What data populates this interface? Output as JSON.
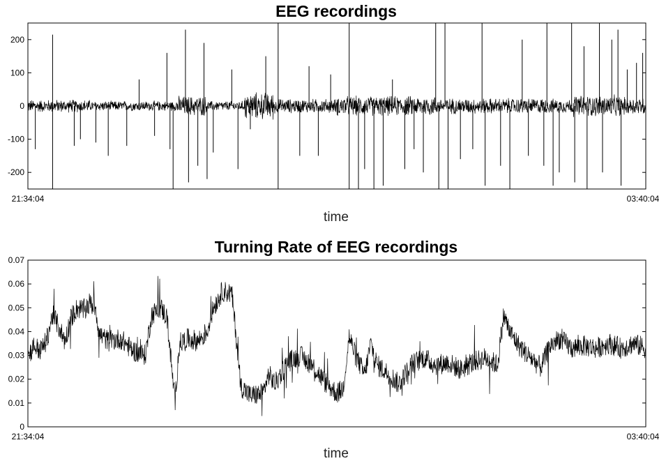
{
  "chart_data": [
    {
      "type": "line",
      "title": "EEG recordings",
      "xlabel": "time",
      "ylabel": "",
      "ylim": [
        -250,
        250
      ],
      "yticks": [
        200,
        100,
        0,
        -100,
        -200
      ],
      "yticklabels": [
        "200",
        "100",
        "0",
        "-100",
        "-200"
      ],
      "xticklabels": [
        "21:34:04",
        "03:40:04"
      ],
      "x_range": [
        "21:34:04",
        "03:40:04"
      ],
      "grid": false,
      "line_color": "#000000",
      "segments": [
        {
          "start": 0.0,
          "end": 0.1,
          "amplitude": 18
        },
        {
          "start": 0.1,
          "end": 0.24,
          "amplitude": 14
        },
        {
          "start": 0.24,
          "end": 0.29,
          "amplitude": 28
        },
        {
          "start": 0.29,
          "end": 0.35,
          "amplitude": 14
        },
        {
          "start": 0.35,
          "end": 0.4,
          "amplitude": 38
        },
        {
          "start": 0.4,
          "end": 0.5,
          "amplitude": 20
        },
        {
          "start": 0.5,
          "end": 0.66,
          "amplitude": 28
        },
        {
          "start": 0.66,
          "end": 0.84,
          "amplitude": 22
        },
        {
          "start": 0.84,
          "end": 0.88,
          "amplitude": 20
        },
        {
          "start": 0.88,
          "end": 0.96,
          "amplitude": 30
        },
        {
          "start": 0.96,
          "end": 1.0,
          "amplitude": 25
        }
      ],
      "spikes": [
        {
          "x": 0.012,
          "y": -130
        },
        {
          "x": 0.04,
          "y": 215
        },
        {
          "x": 0.04,
          "y": -250
        },
        {
          "x": 0.075,
          "y": -120
        },
        {
          "x": 0.085,
          "y": -100
        },
        {
          "x": 0.11,
          "y": -110
        },
        {
          "x": 0.13,
          "y": -150
        },
        {
          "x": 0.16,
          "y": -120
        },
        {
          "x": 0.18,
          "y": 80
        },
        {
          "x": 0.205,
          "y": -90
        },
        {
          "x": 0.225,
          "y": 160
        },
        {
          "x": 0.23,
          "y": -130
        },
        {
          "x": 0.235,
          "y": -250
        },
        {
          "x": 0.255,
          "y": 230
        },
        {
          "x": 0.26,
          "y": -230
        },
        {
          "x": 0.275,
          "y": -180
        },
        {
          "x": 0.285,
          "y": 190
        },
        {
          "x": 0.29,
          "y": -220
        },
        {
          "x": 0.3,
          "y": -140
        },
        {
          "x": 0.33,
          "y": 110
        },
        {
          "x": 0.34,
          "y": -190
        },
        {
          "x": 0.36,
          "y": -70
        },
        {
          "x": 0.385,
          "y": 150
        },
        {
          "x": 0.405,
          "y": 250
        },
        {
          "x": 0.405,
          "y": -250
        },
        {
          "x": 0.44,
          "y": -150
        },
        {
          "x": 0.455,
          "y": 120
        },
        {
          "x": 0.47,
          "y": -150
        },
        {
          "x": 0.49,
          "y": 95
        },
        {
          "x": 0.52,
          "y": 250
        },
        {
          "x": 0.52,
          "y": -250
        },
        {
          "x": 0.535,
          "y": -250
        },
        {
          "x": 0.545,
          "y": -190
        },
        {
          "x": 0.56,
          "y": -250
        },
        {
          "x": 0.575,
          "y": -240
        },
        {
          "x": 0.59,
          "y": 80
        },
        {
          "x": 0.61,
          "y": -190
        },
        {
          "x": 0.625,
          "y": -130
        },
        {
          "x": 0.64,
          "y": -200
        },
        {
          "x": 0.66,
          "y": 250
        },
        {
          "x": 0.665,
          "y": -250
        },
        {
          "x": 0.675,
          "y": 250
        },
        {
          "x": 0.68,
          "y": -250
        },
        {
          "x": 0.7,
          "y": -160
        },
        {
          "x": 0.72,
          "y": -130
        },
        {
          "x": 0.735,
          "y": 250
        },
        {
          "x": 0.74,
          "y": -240
        },
        {
          "x": 0.765,
          "y": -180
        },
        {
          "x": 0.78,
          "y": -250
        },
        {
          "x": 0.8,
          "y": 200
        },
        {
          "x": 0.81,
          "y": -150
        },
        {
          "x": 0.835,
          "y": -180
        },
        {
          "x": 0.84,
          "y": 250
        },
        {
          "x": 0.85,
          "y": -240
        },
        {
          "x": 0.86,
          "y": -200
        },
        {
          "x": 0.88,
          "y": 250
        },
        {
          "x": 0.885,
          "y": -230
        },
        {
          "x": 0.9,
          "y": 180
        },
        {
          "x": 0.905,
          "y": -250
        },
        {
          "x": 0.925,
          "y": 250
        },
        {
          "x": 0.93,
          "y": -200
        },
        {
          "x": 0.945,
          "y": 200
        },
        {
          "x": 0.955,
          "y": 230
        },
        {
          "x": 0.96,
          "y": -240
        },
        {
          "x": 0.97,
          "y": 110
        },
        {
          "x": 0.985,
          "y": 130
        },
        {
          "x": 0.995,
          "y": 160
        }
      ]
    },
    {
      "type": "line",
      "title": "Turning Rate of EEG recordings",
      "xlabel": "time",
      "ylabel": "",
      "ylim": [
        0,
        0.07
      ],
      "yticks": [
        0,
        0.01,
        0.02,
        0.03,
        0.04,
        0.05,
        0.06,
        0.07
      ],
      "yticklabels": [
        "0",
        "0.01",
        "0.02",
        "0.03",
        "0.04",
        "0.05",
        "0.06",
        "0.07"
      ],
      "xticklabels": [
        "21:34:04",
        "03:40:04"
      ],
      "x_range": [
        "21:34:04",
        "03:40:04"
      ],
      "grid": false,
      "line_color": "#000000",
      "trend": [
        {
          "x": 0.0,
          "y": 0.03
        },
        {
          "x": 0.01,
          "y": 0.034
        },
        {
          "x": 0.02,
          "y": 0.032
        },
        {
          "x": 0.03,
          "y": 0.036
        },
        {
          "x": 0.04,
          "y": 0.047
        },
        {
          "x": 0.05,
          "y": 0.042
        },
        {
          "x": 0.06,
          "y": 0.036
        },
        {
          "x": 0.07,
          "y": 0.046
        },
        {
          "x": 0.08,
          "y": 0.05
        },
        {
          "x": 0.09,
          "y": 0.049
        },
        {
          "x": 0.1,
          "y": 0.052
        },
        {
          "x": 0.11,
          "y": 0.05
        },
        {
          "x": 0.115,
          "y": 0.039
        },
        {
          "x": 0.13,
          "y": 0.036
        },
        {
          "x": 0.15,
          "y": 0.037
        },
        {
          "x": 0.17,
          "y": 0.032
        },
        {
          "x": 0.19,
          "y": 0.03
        },
        {
          "x": 0.2,
          "y": 0.047
        },
        {
          "x": 0.215,
          "y": 0.05
        },
        {
          "x": 0.225,
          "y": 0.046
        },
        {
          "x": 0.232,
          "y": 0.027
        },
        {
          "x": 0.238,
          "y": 0.01
        },
        {
          "x": 0.245,
          "y": 0.035
        },
        {
          "x": 0.26,
          "y": 0.037
        },
        {
          "x": 0.275,
          "y": 0.036
        },
        {
          "x": 0.29,
          "y": 0.04
        },
        {
          "x": 0.3,
          "y": 0.05
        },
        {
          "x": 0.315,
          "y": 0.057
        },
        {
          "x": 0.33,
          "y": 0.056
        },
        {
          "x": 0.345,
          "y": 0.017
        },
        {
          "x": 0.36,
          "y": 0.013
        },
        {
          "x": 0.38,
          "y": 0.014
        },
        {
          "x": 0.39,
          "y": 0.022
        },
        {
          "x": 0.4,
          "y": 0.018
        },
        {
          "x": 0.42,
          "y": 0.027
        },
        {
          "x": 0.44,
          "y": 0.03
        },
        {
          "x": 0.46,
          "y": 0.026
        },
        {
          "x": 0.48,
          "y": 0.019
        },
        {
          "x": 0.5,
          "y": 0.014
        },
        {
          "x": 0.51,
          "y": 0.016
        },
        {
          "x": 0.52,
          "y": 0.038
        },
        {
          "x": 0.53,
          "y": 0.03
        },
        {
          "x": 0.545,
          "y": 0.022
        },
        {
          "x": 0.555,
          "y": 0.035
        },
        {
          "x": 0.565,
          "y": 0.026
        },
        {
          "x": 0.585,
          "y": 0.022
        },
        {
          "x": 0.6,
          "y": 0.018
        },
        {
          "x": 0.62,
          "y": 0.026
        },
        {
          "x": 0.64,
          "y": 0.029
        },
        {
          "x": 0.66,
          "y": 0.026
        },
        {
          "x": 0.68,
          "y": 0.027
        },
        {
          "x": 0.7,
          "y": 0.024
        },
        {
          "x": 0.72,
          "y": 0.027
        },
        {
          "x": 0.74,
          "y": 0.029
        },
        {
          "x": 0.76,
          "y": 0.026
        },
        {
          "x": 0.77,
          "y": 0.047
        },
        {
          "x": 0.78,
          "y": 0.04
        },
        {
          "x": 0.795,
          "y": 0.034
        },
        {
          "x": 0.81,
          "y": 0.03
        },
        {
          "x": 0.83,
          "y": 0.025
        },
        {
          "x": 0.845,
          "y": 0.034
        },
        {
          "x": 0.86,
          "y": 0.037
        },
        {
          "x": 0.88,
          "y": 0.033
        },
        {
          "x": 0.9,
          "y": 0.034
        },
        {
          "x": 0.92,
          "y": 0.033
        },
        {
          "x": 0.94,
          "y": 0.035
        },
        {
          "x": 0.96,
          "y": 0.033
        },
        {
          "x": 0.98,
          "y": 0.035
        },
        {
          "x": 1.0,
          "y": 0.033
        }
      ]
    }
  ]
}
